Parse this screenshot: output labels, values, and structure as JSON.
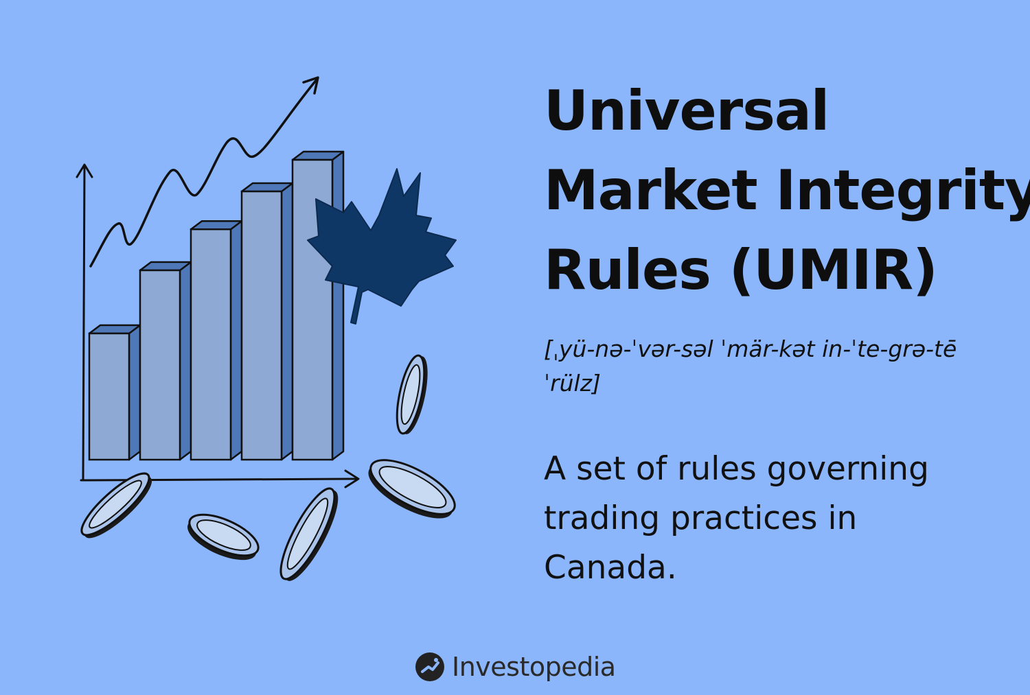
{
  "title_lines": [
    "Universal",
    "Market Integrity",
    "Rules (UMIR)"
  ],
  "pronunciation": "[ˌyü-nə-ˈvər-səl ˈmär-kət in-ˈte-grə-tē ˈrülz]",
  "definition": "A set of rules governing trading practices in Canada.",
  "brand": {
    "name": "Investopedia",
    "logo_icon": "investopedia-logo-icon"
  },
  "colors": {
    "background": "#8cb6fb",
    "bar_front": "#8eaad4",
    "bar_side": "#4f78b8",
    "maple_leaf": "#0f3766",
    "ink": "#111111"
  },
  "illustration": {
    "bar_levels": [
      0.4,
      0.6,
      0.73,
      0.85,
      0.95
    ],
    "icons": [
      "maple-leaf-icon",
      "trend-arrow-icon",
      "coin-icon"
    ]
  }
}
